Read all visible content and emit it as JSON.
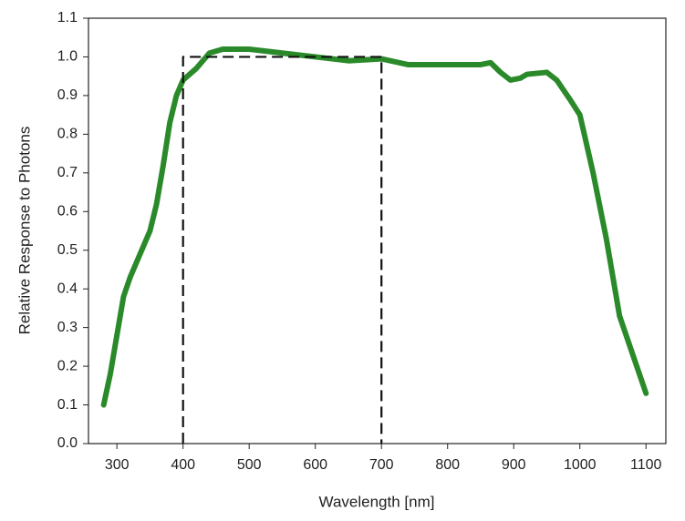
{
  "chart_data": {
    "type": "line",
    "xlabel": "Wavelength [nm]",
    "ylabel": "Relative Response to Photons",
    "xlim": [
      257,
      1130
    ],
    "ylim": [
      0,
      1.1
    ],
    "xticks": [
      300,
      400,
      500,
      600,
      700,
      800,
      900,
      1000,
      1100
    ],
    "yticks": [
      {
        "value": 0,
        "label": "0.0"
      },
      0.1,
      0.2,
      0.3,
      0.4,
      0.5,
      0.6,
      0.7,
      0.8,
      0.9,
      {
        "value": 1,
        "label": "1.0"
      },
      1.1
    ],
    "grid": false,
    "series": [
      {
        "color": "#2a8a2a",
        "dashed": false,
        "x": [
          280,
          290,
          300,
          310,
          320,
          340,
          350,
          360,
          370,
          380,
          390,
          400,
          420,
          440,
          460,
          500,
          550,
          600,
          650,
          700,
          740,
          800,
          850,
          865,
          880,
          895,
          910,
          920,
          950,
          965,
          985,
          1000,
          1020,
          1040,
          1060,
          1080,
          1100
        ],
        "values": [
          0.1,
          0.18,
          0.28,
          0.38,
          0.43,
          0.51,
          0.55,
          0.62,
          0.72,
          0.83,
          0.9,
          0.94,
          0.97,
          1.01,
          1.02,
          1.02,
          1.01,
          1.0,
          0.99,
          0.995,
          0.98,
          0.98,
          0.98,
          0.985,
          0.96,
          0.94,
          0.945,
          0.955,
          0.96,
          0.94,
          0.89,
          0.85,
          0.7,
          0.53,
          0.33,
          0.23,
          0.13
        ]
      },
      {
        "color": "#111111",
        "dashed": true,
        "x": [
          400,
          400,
          700,
          700
        ],
        "values": [
          0,
          1,
          1,
          0
        ]
      }
    ]
  }
}
